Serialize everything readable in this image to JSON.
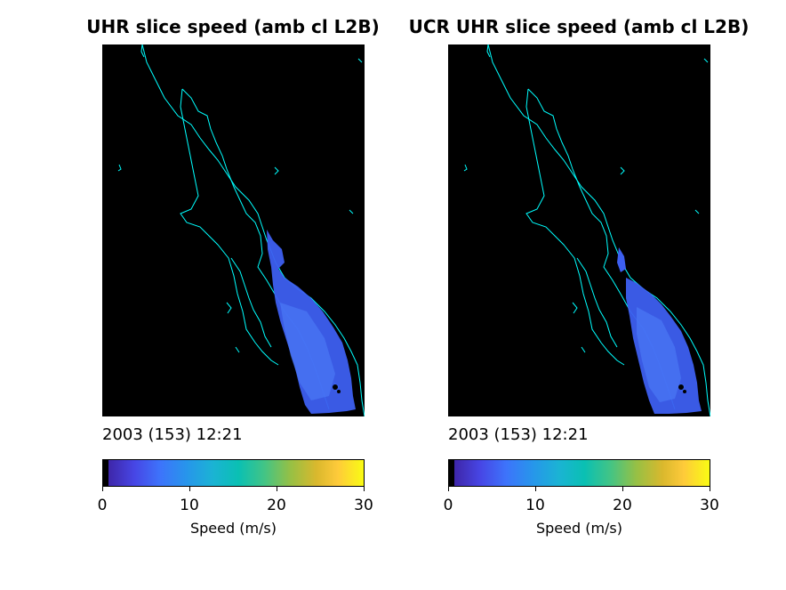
{
  "panels": [
    {
      "title": "UHR slice speed (amb cl L2B)",
      "timestamp": "2003 (153) 12:21",
      "colorbar": {
        "label": "Speed (m/s)",
        "ticks": [
          "0",
          "10",
          "20",
          "30"
        ],
        "min": 0,
        "max": 30
      }
    },
    {
      "title": "UCR UHR slice speed (amb cl L2B)",
      "timestamp": "2003 (153) 12:21",
      "colorbar": {
        "label": "Speed (m/s)",
        "ticks": [
          "0",
          "10",
          "20",
          "30"
        ],
        "min": 0,
        "max": 30
      }
    }
  ],
  "colors": {
    "map_background": "#000000",
    "coastline": "#00ffff",
    "wind_swath": "#3d5ff0"
  }
}
